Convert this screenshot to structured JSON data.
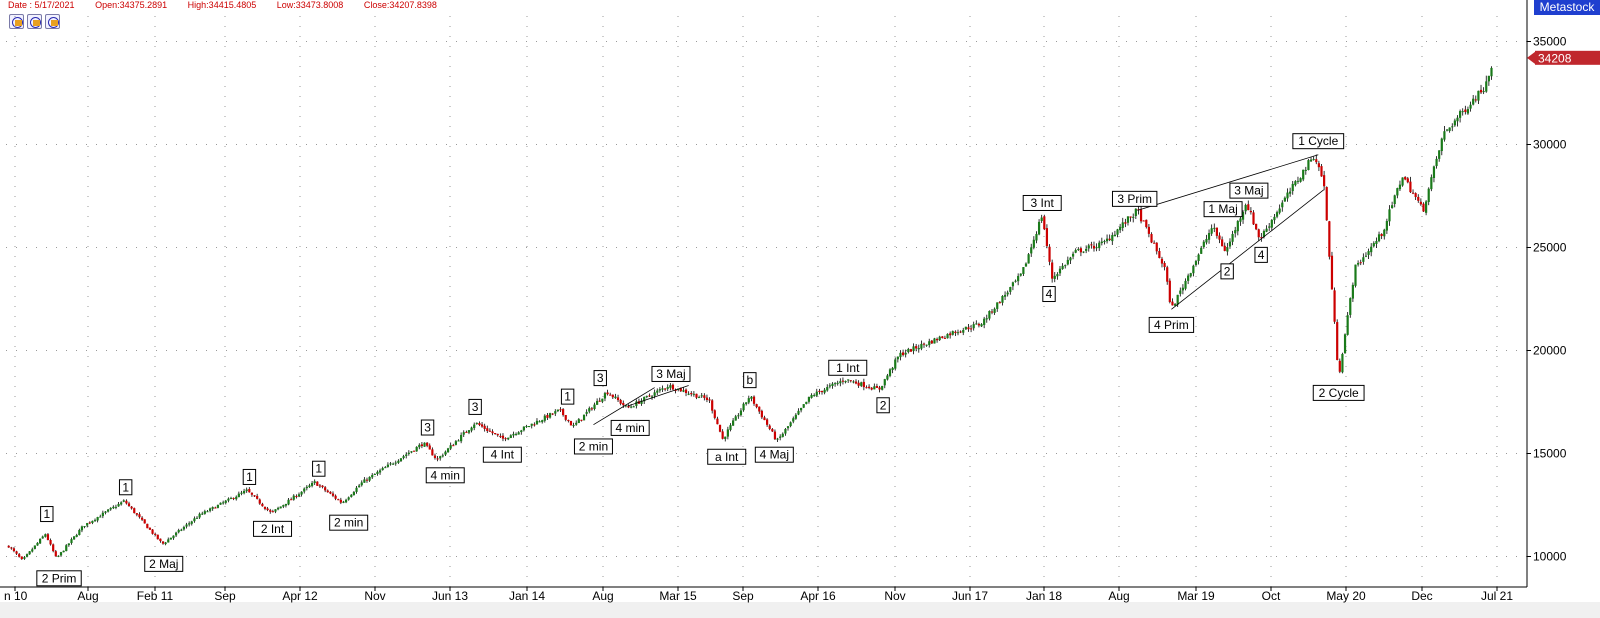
{
  "header": {
    "date": "Date : 5/17/2021",
    "open": "Open:34375.2891",
    "high": "High:34415.4805",
    "low": "Low:33473.8008",
    "close": "Close:34207.8398"
  },
  "brand": "Metastock",
  "toolbar": {
    "icons": [
      "chart-tool-icon",
      "chart-tool-icon",
      "chart-tool-icon"
    ]
  },
  "colors": {
    "up": "#1a7a1a",
    "down": "#cc0000",
    "grid": "#9a9a9a",
    "price_marker": "#c0272d",
    "brand_bg": "#1f3fcf"
  },
  "chart_data": {
    "type": "candlestick",
    "y_ticks": [
      10000,
      15000,
      20000,
      25000,
      30000,
      35000
    ],
    "y_tick_labels": [
      "10000",
      "15000",
      "20000",
      "25000",
      "30000",
      "35000"
    ],
    "ylim": [
      9000,
      35600
    ],
    "x_tick_labels": [
      "n 10",
      "Aug",
      "Feb 11",
      "Sep",
      "Apr 12",
      "Nov",
      "Jun 13",
      "Jan 14",
      "Aug",
      "Mar 15",
      "Sep",
      "Apr 16",
      "Nov",
      "Jun 17",
      "Jan 18",
      "Aug",
      "Mar 19",
      "Oct",
      "May 20",
      "Dec",
      "Jul 21"
    ],
    "last_price_label": "34208",
    "last_price": 34208,
    "series_path": [
      [
        2010.45,
        10500
      ],
      [
        2010.55,
        9800
      ],
      [
        2010.72,
        11100
      ],
      [
        2010.8,
        9900
      ],
      [
        2011.0,
        11500
      ],
      [
        2011.3,
        12700
      ],
      [
        2011.58,
        10600
      ],
      [
        2011.85,
        12000
      ],
      [
        2012.2,
        13200
      ],
      [
        2012.38,
        12100
      ],
      [
        2012.7,
        13600
      ],
      [
        2012.9,
        12600
      ],
      [
        2013.05,
        13600
      ],
      [
        2013.5,
        15500
      ],
      [
        2013.6,
        14700
      ],
      [
        2013.88,
        16500
      ],
      [
        2014.08,
        15700
      ],
      [
        2014.5,
        17100
      ],
      [
        2014.6,
        16300
      ],
      [
        2014.85,
        18000
      ],
      [
        2015.0,
        17200
      ],
      [
        2015.3,
        18300
      ],
      [
        2015.6,
        17600
      ],
      [
        2015.7,
        15700
      ],
      [
        2015.9,
        17800
      ],
      [
        2016.1,
        15600
      ],
      [
        2016.35,
        17800
      ],
      [
        2016.6,
        18600
      ],
      [
        2016.85,
        18100
      ],
      [
        2017.0,
        19800
      ],
      [
        2017.4,
        20900
      ],
      [
        2017.6,
        21300
      ],
      [
        2017.9,
        23700
      ],
      [
        2018.05,
        26600
      ],
      [
        2018.12,
        23500
      ],
      [
        2018.3,
        24800
      ],
      [
        2018.5,
        25200
      ],
      [
        2018.75,
        26800
      ],
      [
        2018.95,
        24000
      ],
      [
        2019.0,
        22000
      ],
      [
        2019.3,
        26000
      ],
      [
        2019.4,
        24800
      ],
      [
        2019.55,
        27200
      ],
      [
        2019.65,
        25400
      ],
      [
        2019.8,
        27000
      ],
      [
        2020.05,
        29500
      ],
      [
        2020.12,
        28200
      ],
      [
        2020.23,
        18700
      ],
      [
        2020.35,
        24000
      ],
      [
        2020.55,
        25700
      ],
      [
        2020.7,
        28500
      ],
      [
        2020.85,
        26800
      ],
      [
        2021.0,
        30500
      ],
      [
        2021.3,
        32800
      ],
      [
        2021.37,
        34200
      ]
    ],
    "trend_lines": [
      [
        [
          2018.75,
          26800
        ],
        [
          2020.08,
          29500
        ]
      ],
      [
        [
          2019.0,
          22000
        ],
        [
          2020.12,
          27800
        ]
      ],
      [
        [
          2015.0,
          17300
        ],
        [
          2015.45,
          18300
        ]
      ],
      [
        [
          2014.75,
          16400
        ],
        [
          2015.2,
          18200
        ]
      ]
    ],
    "annotations": [
      {
        "text": "1",
        "x": 2010.73,
        "y": 11600,
        "pos": "above"
      },
      {
        "text": "2 Prim",
        "x": 2010.82,
        "y": 9500,
        "pos": "below"
      },
      {
        "text": "1",
        "x": 2011.31,
        "y": 12900,
        "pos": "above"
      },
      {
        "text": "2 Maj",
        "x": 2011.59,
        "y": 10200,
        "pos": "below"
      },
      {
        "text": "1",
        "x": 2012.22,
        "y": 13400,
        "pos": "above"
      },
      {
        "text": "2 Int",
        "x": 2012.39,
        "y": 11900,
        "pos": "below"
      },
      {
        "text": "1",
        "x": 2012.73,
        "y": 13800,
        "pos": "above"
      },
      {
        "text": "2 min",
        "x": 2012.95,
        "y": 12200,
        "pos": "below"
      },
      {
        "text": "3",
        "x": 2013.53,
        "y": 15800,
        "pos": "above"
      },
      {
        "text": "4 min",
        "x": 2013.66,
        "y": 14500,
        "pos": "below"
      },
      {
        "text": "3",
        "x": 2013.88,
        "y": 16800,
        "pos": "above"
      },
      {
        "text": "4 Int",
        "x": 2014.08,
        "y": 15500,
        "pos": "below"
      },
      {
        "text": "1",
        "x": 2014.56,
        "y": 17300,
        "pos": "above"
      },
      {
        "text": "3",
        "x": 2014.8,
        "y": 18200,
        "pos": "above"
      },
      {
        "text": "2 min",
        "x": 2014.75,
        "y": 15900,
        "pos": "below"
      },
      {
        "text": "4 min",
        "x": 2015.02,
        "y": 16800,
        "pos": "below"
      },
      {
        "text": "3 Maj",
        "x": 2015.32,
        "y": 18400,
        "pos": "above"
      },
      {
        "text": "a Int",
        "x": 2015.73,
        "y": 15400,
        "pos": "below"
      },
      {
        "text": "b",
        "x": 2015.9,
        "y": 18100,
        "pos": "above"
      },
      {
        "text": "4 Maj",
        "x": 2016.08,
        "y": 15500,
        "pos": "below"
      },
      {
        "text": "1 Int",
        "x": 2016.62,
        "y": 18700,
        "pos": "above"
      },
      {
        "text": "2",
        "x": 2016.88,
        "y": 17900,
        "pos": "below"
      },
      {
        "text": "3 Int",
        "x": 2018.05,
        "y": 26700,
        "pos": "above"
      },
      {
        "text": "4",
        "x": 2018.1,
        "y": 23300,
        "pos": "below"
      },
      {
        "text": "3 Prim",
        "x": 2018.73,
        "y": 26900,
        "pos": "above"
      },
      {
        "text": "4 Prim",
        "x": 2019.0,
        "y": 21800,
        "pos": "below"
      },
      {
        "text": "1 Maj",
        "x": 2019.38,
        "y": 26400,
        "pos": "above"
      },
      {
        "text": "2",
        "x": 2019.41,
        "y": 24400,
        "pos": "below"
      },
      {
        "text": "3 Maj",
        "x": 2019.57,
        "y": 27300,
        "pos": "above"
      },
      {
        "text": "4",
        "x": 2019.66,
        "y": 25200,
        "pos": "below"
      },
      {
        "text": "1 Cycle",
        "x": 2020.08,
        "y": 29700,
        "pos": "above"
      },
      {
        "text": "2 Cycle",
        "x": 2020.23,
        "y": 18500,
        "pos": "below"
      }
    ]
  }
}
